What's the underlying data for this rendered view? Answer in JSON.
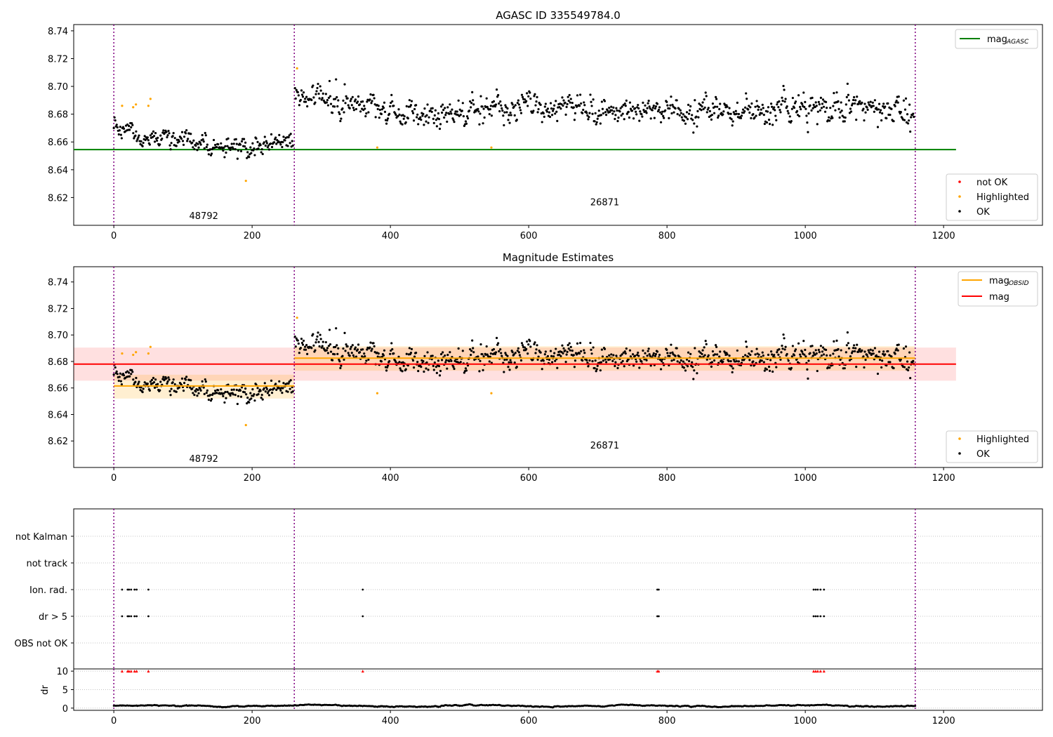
{
  "chart_data": [
    {
      "type": "scatter",
      "title": "AGASC ID 335549784.0",
      "xlabel": "",
      "ylabel": "",
      "xlim": [
        -58,
        1343
      ],
      "ylim": [
        8.6,
        8.7445
      ],
      "x_ticks": [
        0,
        200,
        400,
        600,
        800,
        1000,
        1200
      ],
      "y_ticks": [
        8.62,
        8.64,
        8.66,
        8.68,
        8.7,
        8.72,
        8.74
      ],
      "obsid_boundaries": [
        0,
        261,
        1159
      ],
      "obsid_labels": [
        {
          "text": "48792",
          "x": 130,
          "y": 8.607
        },
        {
          "text": "26871",
          "x": 710,
          "y": 8.617
        }
      ],
      "hlines": [
        {
          "name": "mag",
          "sub": "AGASC",
          "color": "#008000",
          "y": 8.6545,
          "x": [
            -58,
            1218
          ]
        }
      ],
      "series": [
        {
          "name": "OK",
          "color": "#000000",
          "segments": [
            {
              "x": [
                0,
                259
              ],
              "trend": [
                [
                  0,
                  8.668
                ],
                [
                  60,
                  8.663
                ],
                [
                  120,
                  8.659
                ],
                [
                  190,
                  8.652
                ],
                [
                  259,
                  8.663
                ]
              ],
              "sd": 0.0065,
              "n": 250
            },
            {
              "x": [
                262,
                1157
              ],
              "trend": [
                [
                  262,
                  8.697
                ],
                [
                  330,
                  8.688
                ],
                [
                  450,
                  8.679
                ],
                [
                  620,
                  8.687
                ],
                [
                  760,
                  8.682
                ],
                [
                  1000,
                  8.687
                ],
                [
                  1157,
                  8.682
                ]
              ],
              "sd": 0.0085,
              "n": 860
            }
          ]
        },
        {
          "name": "Highlighted",
          "color": "#ffa500",
          "points": [
            [
              12,
              8.686
            ],
            [
              28,
              8.685
            ],
            [
              32,
              8.687
            ],
            [
              50,
              8.686
            ],
            [
              53,
              8.691
            ],
            [
              191,
              8.632
            ],
            [
              265,
              8.713
            ],
            [
              381,
              8.656
            ],
            [
              546,
              8.656
            ]
          ]
        },
        {
          "name": "not OK",
          "color": "#ff0000",
          "points": []
        }
      ],
      "legends": [
        {
          "position": "upper right",
          "entries": [
            {
              "label": "mag",
              "sub": "AGASC",
              "color": "#008000",
              "kind": "line"
            }
          ]
        },
        {
          "position": "lower right",
          "entries": [
            {
              "label": "not OK",
              "color": "#ff0000",
              "kind": "dot"
            },
            {
              "label": "Highlighted",
              "color": "#ffa500",
              "kind": "dot"
            },
            {
              "label": "OK",
              "color": "#000000",
              "kind": "dot"
            }
          ]
        }
      ]
    },
    {
      "type": "scatter",
      "title": "Magnitude Estimates",
      "xlim": [
        -58,
        1343
      ],
      "ylim": [
        8.6,
        8.7515
      ],
      "x_ticks": [
        0,
        200,
        400,
        600,
        800,
        1000,
        1200
      ],
      "y_ticks": [
        8.62,
        8.64,
        8.66,
        8.68,
        8.7,
        8.72,
        8.74
      ],
      "obsid_boundaries": [
        0,
        261,
        1159
      ],
      "obsid_labels": [
        {
          "text": "48792",
          "x": 130,
          "y": 8.607
        },
        {
          "text": "26871",
          "x": 710,
          "y": 8.617
        }
      ],
      "bands": [
        {
          "name": "mag",
          "color": "#ff0000",
          "y": 8.678,
          "y_lo": 8.6655,
          "y_hi": 8.6905,
          "x": [
            -58,
            1218
          ]
        },
        {
          "name": "mag_OBSID",
          "color": "#ffa500",
          "y": 8.6615,
          "y_lo": 8.652,
          "y_hi": 8.67,
          "x": [
            0,
            261
          ]
        },
        {
          "name": "mag_OBSID",
          "color": "#ffa500",
          "y": 8.6825,
          "y_lo": 8.673,
          "y_hi": 8.6915,
          "x": [
            261,
            1159
          ]
        }
      ],
      "series": [
        {
          "name": "OK",
          "color": "#000000",
          "same_as_panel": 0
        },
        {
          "name": "Highlighted",
          "color": "#ffa500",
          "same_as_panel": 0
        }
      ],
      "legends": [
        {
          "position": "upper right",
          "entries": [
            {
              "label": "mag",
              "sub": "OBSID",
              "color": "#ffa500",
              "kind": "line"
            },
            {
              "label": "mag",
              "sub": "",
              "color": "#ff0000",
              "kind": "line"
            }
          ]
        },
        {
          "position": "lower right",
          "entries": [
            {
              "label": "Highlighted",
              "color": "#ffa500",
              "kind": "dot"
            },
            {
              "label": "OK",
              "color": "#000000",
              "kind": "dot"
            }
          ]
        }
      ]
    },
    {
      "type": "scatter",
      "title": "",
      "xlim": [
        -58,
        1343
      ],
      "categories": [
        "not Kalman",
        "not track",
        "Ion. rad.",
        "dr > 5",
        "OBS not OK"
      ],
      "obsid_boundaries": [
        0,
        261,
        1159
      ],
      "flags": {
        "Ion. rad.": [
          12,
          20,
          22,
          25,
          30,
          33,
          50,
          360,
          786,
          788,
          1012,
          1015,
          1018,
          1022,
          1027
        ],
        "dr > 5": [
          12,
          20,
          22,
          25,
          30,
          33,
          50,
          360,
          786,
          788,
          1012,
          1015,
          1018,
          1022,
          1027
        ]
      }
    },
    {
      "type": "scatter",
      "xlabel": "",
      "ylabel": "dr",
      "xlim": [
        -58,
        1343
      ],
      "ylim": [
        -0.6,
        10.6
      ],
      "x_ticks": [
        0,
        200,
        400,
        600,
        800,
        1000,
        1200
      ],
      "y_ticks": [
        0,
        5,
        10
      ],
      "obsid_boundaries": [
        0,
        261,
        1159
      ],
      "series": [
        {
          "name": "dr",
          "color": "#000000",
          "x": [
            0,
            1159
          ],
          "baseline": 0.6,
          "sd": 0.25
        },
        {
          "name": "dr clipped",
          "color": "#ff0000",
          "marker": "triangle",
          "y": 10,
          "x": [
            12,
            20,
            22,
            25,
            30,
            33,
            50,
            360,
            786,
            788,
            1012,
            1015,
            1018,
            1022,
            1027
          ]
        }
      ]
    }
  ]
}
